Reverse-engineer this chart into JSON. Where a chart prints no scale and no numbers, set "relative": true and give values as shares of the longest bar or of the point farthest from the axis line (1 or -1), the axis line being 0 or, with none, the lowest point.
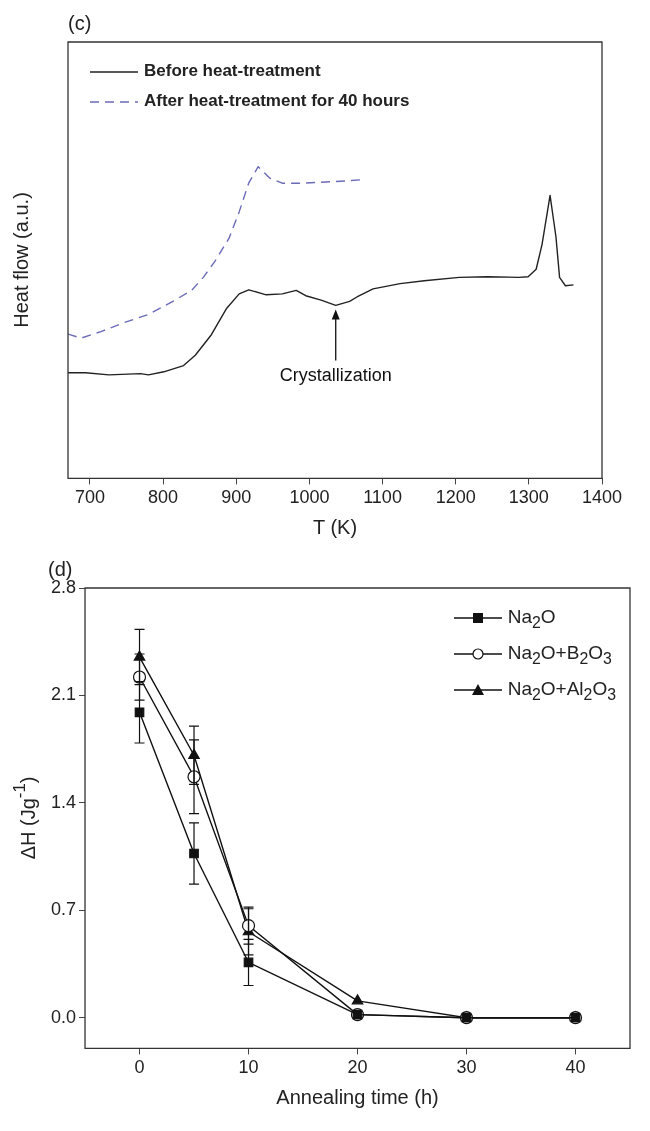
{
  "chart_data": [
    {
      "type": "line",
      "title": "(c)",
      "xlabel": "T (K)",
      "ylabel": "Heat flow (a.u.)",
      "relative": true,
      "xlim": [
        670,
        1400
      ],
      "xticks": [
        700,
        800,
        900,
        1000,
        1100,
        1200,
        1300,
        1400
      ],
      "legend": "top left",
      "grid": false,
      "annotations": [
        {
          "text": "Crystallization",
          "x": 1036,
          "y": 0.555
        }
      ],
      "series": [
        {
          "name": "Before heat-treatment",
          "color": "#222222",
          "line_style": "solid",
          "x": [
            670,
            694,
            726,
            769,
            780,
            801,
            828,
            844,
            866,
            887,
            904,
            917,
            941,
            963,
            982,
            995,
            1016,
            1036,
            1055,
            1065,
            1087,
            1124,
            1157,
            1205,
            1243,
            1286,
            1299,
            1310,
            1318,
            1329,
            1337,
            1342,
            1350,
            1361
          ],
          "values": [
            0.339,
            0.339,
            0.332,
            0.336,
            0.332,
            0.342,
            0.362,
            0.395,
            0.461,
            0.546,
            0.592,
            0.605,
            0.589,
            0.592,
            0.603,
            0.586,
            0.572,
            0.555,
            0.568,
            0.582,
            0.608,
            0.625,
            0.634,
            0.645,
            0.647,
            0.645,
            0.647,
            0.671,
            0.75,
            0.908,
            0.776,
            0.645,
            0.618,
            0.621
          ]
        },
        {
          "name": "After heat-treatment for 40 hours",
          "color": "#6b6bb8",
          "line_style": "dashed",
          "x": [
            670,
            688,
            715,
            747,
            780,
            812,
            839,
            855,
            871,
            890,
            904,
            917,
            930,
            946,
            963,
            990,
            1016,
            1049,
            1070
          ],
          "values": [
            0.463,
            0.45,
            0.471,
            0.5,
            0.526,
            0.566,
            0.603,
            0.645,
            0.697,
            0.77,
            0.855,
            0.947,
            1.0,
            0.963,
            0.947,
            0.947,
            0.95,
            0.954,
            0.958
          ]
        }
      ]
    },
    {
      "type": "line",
      "title": "(d)",
      "xlabel": "Annealing time (h)",
      "ylabel": "ΔH (Jg$^{-1}$)",
      "x": [
        0,
        5,
        10,
        20,
        30,
        40
      ],
      "xlim": [
        -5,
        45
      ],
      "xticks": [
        0,
        10,
        20,
        30,
        40
      ],
      "ylim": [
        -0.2,
        2.8
      ],
      "yticks": [
        {
          "value": 0,
          "label": "0.0"
        },
        0.7,
        1.4,
        2.1,
        2.8
      ],
      "legend": "top right",
      "grid": false,
      "series": [
        {
          "name": "Na$_{2}$O",
          "color": "#111111",
          "marker": "square",
          "values": [
            1.99,
            1.07,
            0.36,
            0.02,
            0,
            0
          ],
          "errors": [
            0.2,
            0.2,
            0.15,
            null,
            null,
            null
          ]
        },
        {
          "name": "Na$_{2}$O+B$_{2}$O$_{3}$",
          "color": "#111111",
          "marker": "circle",
          "values": [
            2.22,
            1.57,
            0.6,
            0.02,
            0,
            0
          ],
          "errors": [
            0.15,
            0.24,
            0.12,
            null,
            null,
            null
          ]
        },
        {
          "name": "Na$_{2}$O+Al$_{2}$O$_{3}$",
          "color": "#111111",
          "marker": "triangle",
          "values": [
            2.35,
            1.71,
            0.56,
            0.11,
            0,
            0
          ],
          "errors": [
            0.18,
            0.19,
            0.15,
            null,
            null,
            null
          ]
        }
      ]
    }
  ]
}
